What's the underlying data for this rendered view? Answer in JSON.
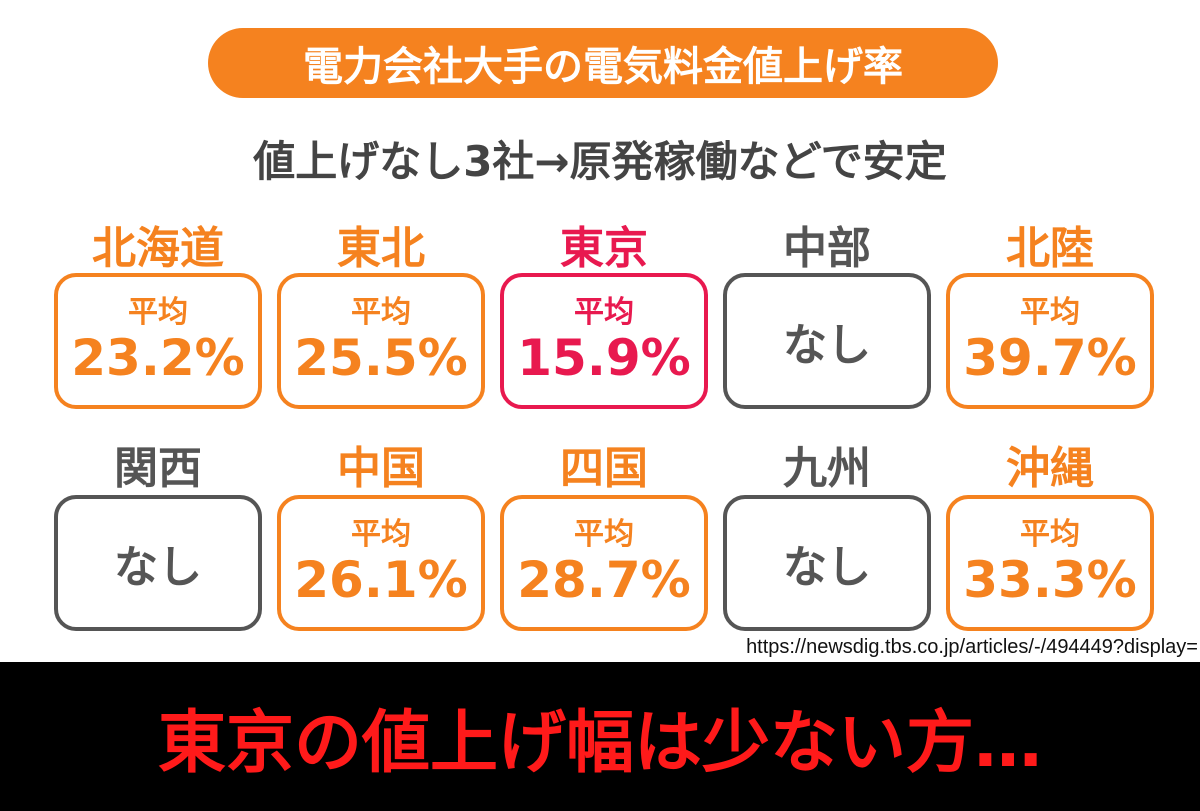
{
  "header": {
    "title": "電力会社大手の電気料金値上げ率",
    "subtitle": "値上げなし3社→原発稼働などで安定"
  },
  "regions": [
    {
      "name": "北海道",
      "label": "平均",
      "value": "23.2%",
      "color": "#f5821f"
    },
    {
      "name": "東北",
      "label": "平均",
      "value": "25.5%",
      "color": "#f5821f"
    },
    {
      "name": "東京",
      "label": "平均",
      "value": "15.9%",
      "color": "#e8194f"
    },
    {
      "name": "中部",
      "value": "なし",
      "color": "#555555"
    },
    {
      "name": "北陸",
      "label": "平均",
      "value": "39.7%",
      "color": "#f5821f"
    },
    {
      "name": "関西",
      "value": "なし",
      "color": "#555555"
    },
    {
      "name": "中国",
      "label": "平均",
      "value": "26.1%",
      "color": "#f5821f"
    },
    {
      "name": "四国",
      "label": "平均",
      "value": "28.7%",
      "color": "#f5821f"
    },
    {
      "name": "九州",
      "value": "なし",
      "color": "#555555"
    },
    {
      "name": "沖縄",
      "label": "平均",
      "value": "33.3%",
      "color": "#f5821f"
    }
  ],
  "source_url": "https://newsdig.tbs.co.jp/articles/-/494449?display=",
  "caption": "東京の値上げ幅は少ない方…"
}
